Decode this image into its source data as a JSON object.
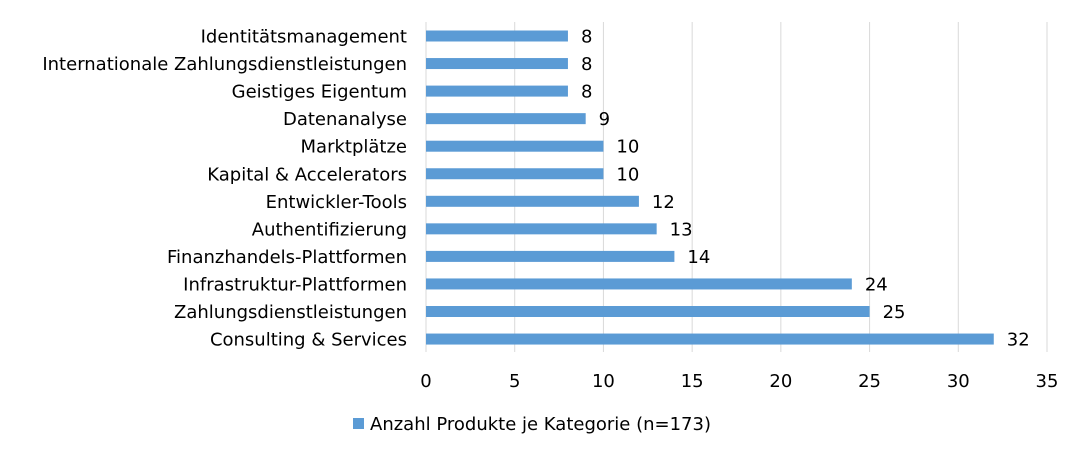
{
  "chart_data": {
    "type": "bar",
    "orientation": "horizontal",
    "categories": [
      "Identitätsmanagement",
      "Internationale Zahlungsdienstleistungen",
      "Geistiges Eigentum",
      "Datenanalyse",
      "Marktplätze",
      "Kapital & Accelerators",
      "Entwickler-Tools",
      "Authentifizierung",
      "Finanzhandels-Plattformen",
      "Infrastruktur-Plattformen",
      "Zahlungsdienstleistungen",
      "Consulting & Services"
    ],
    "series": [
      {
        "name": "Anzahl Produkte je Kategorie (n=173)",
        "values": [
          8,
          8,
          8,
          9,
          10,
          10,
          12,
          13,
          14,
          24,
          25,
          32
        ],
        "color": "#5b9bd5"
      }
    ],
    "xlim": [
      0,
      35
    ],
    "xticks": [
      0,
      5,
      10,
      15,
      20,
      25,
      30,
      35
    ],
    "grid": "vertical",
    "legend": "bottom-center",
    "data_labels": true,
    "title": "",
    "xlabel": "",
    "ylabel": ""
  }
}
